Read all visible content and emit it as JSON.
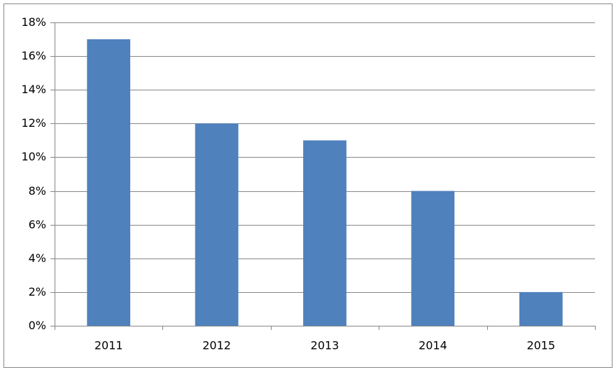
{
  "chart_data": {
    "type": "bar",
    "categories": [
      "2011",
      "2012",
      "2013",
      "2014",
      "2015"
    ],
    "values": [
      17,
      12,
      11,
      8,
      2
    ],
    "color": "#4f81bd",
    "ylim": [
      0,
      18
    ],
    "yticks": [
      {
        "value": 0,
        "label": "0%"
      },
      {
        "value": 2,
        "label": "2%"
      },
      {
        "value": 4,
        "label": "4%"
      },
      {
        "value": 6,
        "label": "6%"
      },
      {
        "value": 8,
        "label": "8%"
      },
      {
        "value": 10,
        "label": "10%"
      },
      {
        "value": 12,
        "label": "12%"
      },
      {
        "value": 14,
        "label": "14%"
      },
      {
        "value": 16,
        "label": "16%"
      },
      {
        "value": 18,
        "label": "18%"
      }
    ],
    "grid": true
  }
}
